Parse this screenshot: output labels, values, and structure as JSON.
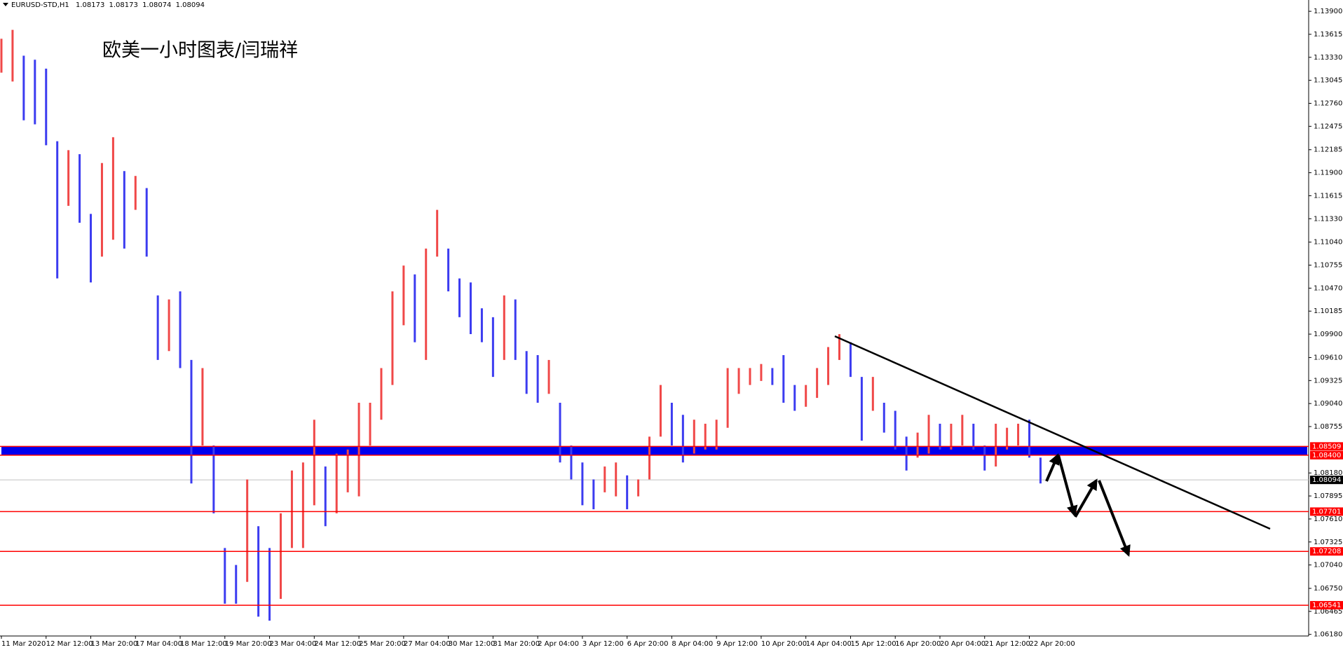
{
  "chart_data": {
    "type": "bar",
    "header": {
      "symbol": "EURUSD-STD,H1",
      "ohlc": [
        1.08173,
        1.08173,
        1.08074,
        1.08094
      ]
    },
    "title": "欧美一小时图表/闫瑞祥",
    "up_color": "#f04848",
    "down_color": "#3c3cf0",
    "x": [
      0,
      8,
      16,
      24,
      32,
      40,
      48,
      56,
      64,
      72,
      80,
      88,
      96,
      104,
      112,
      120,
      128,
      136,
      144,
      152,
      160,
      168,
      176,
      184,
      192,
      200,
      208,
      216,
      224,
      232,
      240,
      248,
      256,
      264,
      272,
      280,
      288,
      296,
      304,
      312,
      320,
      328,
      336,
      344,
      352,
      360,
      368,
      376,
      384,
      392,
      400,
      408,
      416,
      424,
      432,
      440,
      448,
      456,
      464,
      472,
      480,
      488,
      496,
      504,
      512,
      520,
      528,
      536,
      544,
      552,
      560,
      568,
      576,
      584,
      592,
      600,
      608,
      616,
      624,
      632,
      640,
      648,
      656,
      664,
      672,
      680,
      688,
      696,
      704,
      712,
      720,
      728,
      736,
      744
    ],
    "high": [
      1.1356,
      1.1367,
      1.1335,
      1.133,
      1.1319,
      1.1229,
      1.1218,
      1.1213,
      1.1139,
      1.1202,
      1.1234,
      1.1192,
      1.1186,
      1.1171,
      1.1038,
      1.1033,
      1.1043,
      1.0958,
      1.0948,
      1.0852,
      1.0725,
      1.0704,
      1.081,
      1.0752,
      1.0725,
      1.0768,
      1.0821,
      1.0831,
      1.0884,
      1.0826,
      1.0842,
      1.0847,
      1.0905,
      1.0905,
      1.0948,
      1.1043,
      1.1075,
      1.1064,
      1.1096,
      1.1144,
      1.1096,
      1.1059,
      1.1054,
      1.1022,
      1.1011,
      1.1038,
      1.1033,
      1.0969,
      1.0964,
      1.0958,
      1.0905,
      1.0852,
      1.0831,
      1.081,
      1.0826,
      1.0831,
      1.0815,
      1.081,
      1.0863,
      1.0927,
      1.0905,
      1.089,
      1.0884,
      1.0879,
      1.0884,
      1.0948,
      1.0948,
      1.0948,
      1.0953,
      1.0948,
      1.0964,
      1.0927,
      1.0927,
      1.0948,
      1.0974,
      1.099,
      1.098,
      1.0937,
      1.0937,
      1.0905,
      1.0895,
      1.0863,
      1.0868,
      1.089,
      1.0879,
      1.0879,
      1.089,
      1.0879,
      1.0852,
      1.0879,
      1.0874,
      1.0879,
      1.0884,
      1.0837
    ],
    "low": [
      1.1314,
      1.1303,
      1.1255,
      1.125,
      1.1224,
      1.1059,
      1.1149,
      1.1128,
      1.1054,
      1.1086,
      1.1107,
      1.1096,
      1.1144,
      1.1086,
      1.0958,
      1.0969,
      1.0948,
      1.0805,
      1.0852,
      1.0768,
      1.0656,
      1.0656,
      1.0683,
      1.064,
      1.0635,
      1.0662,
      1.0725,
      1.0725,
      1.0778,
      1.0752,
      1.0768,
      1.0794,
      1.0789,
      1.0852,
      1.0884,
      1.0927,
      1.1001,
      1.098,
      1.0958,
      1.1086,
      1.1043,
      1.1011,
      1.099,
      1.098,
      1.0937,
      1.0958,
      1.0958,
      1.0916,
      1.0905,
      1.0916,
      1.0831,
      1.081,
      1.0778,
      1.0773,
      1.0794,
      1.0789,
      1.0773,
      1.0789,
      1.081,
      1.0863,
      1.0852,
      1.0831,
      1.0842,
      1.0847,
      1.0847,
      1.0874,
      1.0916,
      1.0927,
      1.0932,
      1.0927,
      1.0905,
      1.0895,
      1.09,
      1.0911,
      1.0927,
      1.0958,
      1.0937,
      1.0858,
      1.0895,
      1.0868,
      1.0847,
      1.0821,
      1.0837,
      1.0842,
      1.0847,
      1.0847,
      1.0852,
      1.0847,
      1.0821,
      1.0826,
      1.0847,
      1.0852,
      1.0837,
      1.0805
    ],
    "xlim": [
      -1,
      936
    ],
    "xticks": [
      {
        "value": 0,
        "label": "11 Mar 2020"
      },
      {
        "value": 32,
        "label": "12 Mar 12:00"
      },
      {
        "value": 64,
        "label": "13 Mar 20:00"
      },
      {
        "value": 96,
        "label": "17 Mar 04:00"
      },
      {
        "value": 128,
        "label": "18 Mar 12:00"
      },
      {
        "value": 160,
        "label": "19 Mar 20:00"
      },
      {
        "value": 192,
        "label": "23 Mar 04:00"
      },
      {
        "value": 224,
        "label": "24 Mar 12:00"
      },
      {
        "value": 256,
        "label": "25 Mar 20:00"
      },
      {
        "value": 288,
        "label": "27 Mar 04:00"
      },
      {
        "value": 320,
        "label": "30 Mar 12:00"
      },
      {
        "value": 352,
        "label": "31 Mar 20:00"
      },
      {
        "value": 384,
        "label": "2 Apr 04:00"
      },
      {
        "value": 416,
        "label": "3 Apr 12:00"
      },
      {
        "value": 448,
        "label": "6 Apr 20:00"
      },
      {
        "value": 480,
        "label": "8 Apr 04:00"
      },
      {
        "value": 512,
        "label": "9 Apr 12:00"
      },
      {
        "value": 544,
        "label": "10 Apr 20:00"
      },
      {
        "value": 576,
        "label": "14 Apr 04:00"
      },
      {
        "value": 608,
        "label": "15 Apr 12:00"
      },
      {
        "value": 640,
        "label": "16 Apr 20:00"
      },
      {
        "value": 672,
        "label": "20 Apr 04:00"
      },
      {
        "value": 704,
        "label": "21 Apr 12:00"
      },
      {
        "value": 736,
        "label": "22 Apr 20:00"
      }
    ],
    "ylim": [
      1.0616,
      1.1404
    ],
    "yticks": [
      {
        "value": 1.139,
        "label": "1.13900"
      },
      1.13615,
      {
        "value": 1.1333,
        "label": "1.13330"
      },
      1.13045,
      {
        "value": 1.1276,
        "label": "1.12760"
      },
      1.12475,
      1.12185,
      {
        "value": 1.119,
        "label": "1.11900"
      },
      1.11615,
      {
        "value": 1.1133,
        "label": "1.11330"
      },
      {
        "value": 1.1104,
        "label": "1.11040"
      },
      1.10755,
      {
        "value": 1.1047,
        "label": "1.10470"
      },
      1.10185,
      {
        "value": 1.099,
        "label": "1.09900"
      },
      {
        "value": 1.0961,
        "label": "1.09610"
      },
      1.09325,
      {
        "value": 1.0904,
        "label": "1.09040"
      },
      1.08755,
      {
        "value": 1.0818,
        "label": "1.08180"
      },
      1.07895,
      {
        "value": 1.0761,
        "label": "1.07610"
      },
      1.07325,
      {
        "value": 1.0704,
        "label": "1.07040"
      },
      {
        "value": 1.0675,
        "label": "1.06750"
      },
      1.06465,
      {
        "value": 1.0618,
        "label": "1.06180"
      }
    ],
    "levels": [
      1.08509,
      {
        "value": 1.084,
        "label": "1.08400"
      },
      1.07701,
      1.07208,
      1.06541
    ],
    "band_color": "#0000ee",
    "level_color": "#ff0000",
    "current_price": 1.08094
  }
}
